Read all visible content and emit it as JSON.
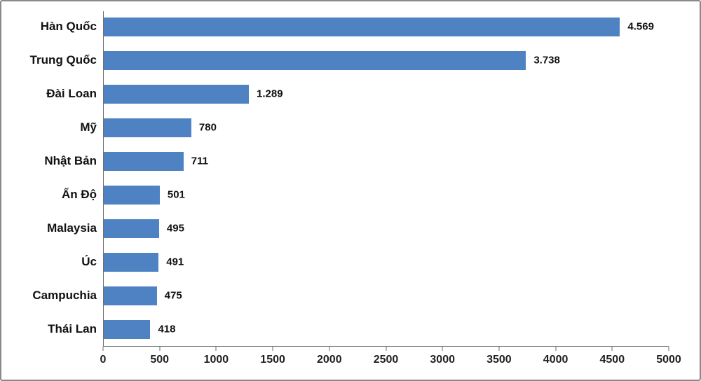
{
  "chart_data": {
    "type": "bar",
    "orientation": "horizontal",
    "title": "",
    "xlabel": "",
    "ylabel": "",
    "categories": [
      "Hàn Quốc",
      "Trung Quốc",
      "Đài Loan",
      "Mỹ",
      "Nhật Bản",
      "Ấn Độ",
      "Malaysia",
      "Úc",
      "Campuchia",
      "Thái Lan"
    ],
    "values": [
      4569,
      3738,
      1289,
      780,
      711,
      501,
      495,
      491,
      475,
      418
    ],
    "data_labels": [
      "4.569",
      "3.738",
      "1.289",
      "780",
      "711",
      "501",
      "495",
      "491",
      "475",
      "418"
    ],
    "x_ticks": [
      0,
      500,
      1000,
      1500,
      2000,
      2500,
      3000,
      3500,
      4000,
      4500,
      5000
    ],
    "xlim": [
      0,
      5000
    ],
    "bar_color": "#4e82c3",
    "grid": false,
    "legend": false,
    "data_labels_position": "outside-end"
  }
}
